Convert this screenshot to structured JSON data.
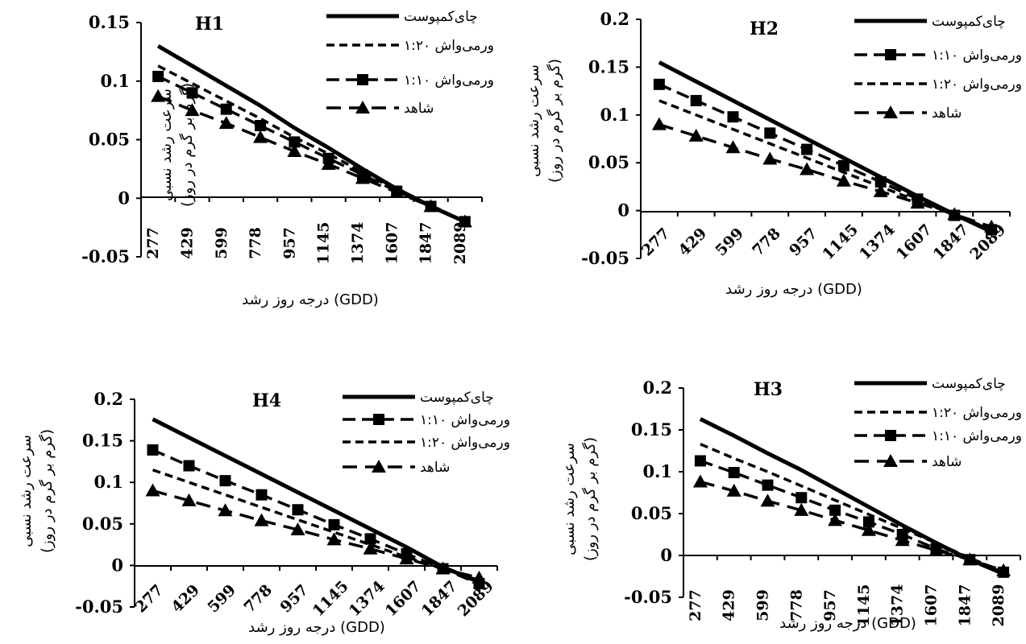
{
  "chart_data": [
    {
      "type": "line",
      "title": "H1",
      "xlabel": "درجه روز رشد (GDD)",
      "ylabel": "سرعت رشد نسبی",
      "ylabel_unit": "(گرم بر گرم در روز)",
      "categories": [
        "277",
        "429",
        "599",
        "778",
        "957",
        "1145",
        "1374",
        "1607",
        "1847",
        "2089"
      ],
      "ylim": [
        -0.05,
        0.15
      ],
      "yticks": [
        "0.15",
        "0.1",
        "0.05",
        "0",
        "-0.05"
      ],
      "tick_values": [
        0.15,
        0.1,
        0.05,
        0,
        -0.05
      ],
      "x_rotated": false,
      "legend_position": "top-right",
      "series": [
        {
          "name": "چای‌کمپوست",
          "style": "solid",
          "marker": "none",
          "values": [
            0.13,
            0.113,
            0.096,
            0.079,
            0.06,
            0.043,
            0.025,
            0.008,
            -0.007,
            -0.02
          ]
        },
        {
          "name": "ورمی‌واش ۱:۲۰",
          "style": "dashed",
          "marker": "none",
          "values": [
            0.113,
            0.098,
            0.083,
            0.068,
            0.052,
            0.038,
            0.022,
            0.007,
            -0.006,
            -0.02
          ]
        },
        {
          "name": "ورمی‌واش ۱:۱۰",
          "style": "dashdot",
          "marker": "square",
          "values": [
            0.104,
            0.09,
            0.076,
            0.062,
            0.048,
            0.034,
            0.02,
            0.006,
            -0.007,
            -0.02
          ]
        },
        {
          "name": "شاهد",
          "style": "longdash",
          "marker": "triangle",
          "values": [
            0.087,
            0.075,
            0.064,
            0.052,
            0.04,
            0.029,
            0.017,
            0.005,
            -0.007,
            -0.02
          ]
        }
      ]
    },
    {
      "type": "line",
      "title": "H2",
      "xlabel": "درجه روز رشد (GDD)",
      "ylabel": "سرعت رشد نسبی",
      "ylabel_unit": "(گرم بر گرم در روز)",
      "categories": [
        "277",
        "429",
        "599",
        "778",
        "957",
        "1145",
        "1374",
        "1607",
        "1847",
        "2089"
      ],
      "ylim": [
        -0.05,
        0.2
      ],
      "yticks": [
        "0.2",
        "0.15",
        "0.1",
        "0.05",
        "0",
        "-0.05"
      ],
      "tick_values": [
        0.2,
        0.15,
        0.1,
        0.05,
        0,
        -0.05
      ],
      "x_rotated": true,
      "legend_position": "top-right",
      "series": [
        {
          "name": "چای‌کمپوست",
          "style": "solid",
          "marker": "none",
          "values": [
            0.155,
            0.135,
            0.115,
            0.095,
            0.075,
            0.055,
            0.035,
            0.015,
            -0.004,
            -0.022
          ]
        },
        {
          "name": "ورمی‌واش ۱:۱۰",
          "style": "dashdot",
          "marker": "square",
          "values": [
            0.132,
            0.115,
            0.098,
            0.081,
            0.064,
            0.047,
            0.03,
            0.012,
            -0.005,
            -0.02
          ]
        },
        {
          "name": "ورمی‌واش ۱:۲۰",
          "style": "dashed",
          "marker": "none",
          "values": [
            0.115,
            0.1,
            0.085,
            0.07,
            0.055,
            0.04,
            0.025,
            0.01,
            -0.004,
            -0.02
          ]
        },
        {
          "name": "شاهد",
          "style": "longdash",
          "marker": "triangle",
          "values": [
            0.09,
            0.078,
            0.066,
            0.054,
            0.043,
            0.031,
            0.02,
            0.008,
            -0.004,
            -0.017
          ]
        }
      ]
    },
    {
      "type": "line",
      "title": "H4",
      "xlabel": "درجه روز رشد (GDD)",
      "ylabel": "سرعت رشد نسبی",
      "ylabel_unit": "(گرم بر گرم در روز)",
      "categories": [
        "277",
        "429",
        "599",
        "778",
        "957",
        "1145",
        "1374",
        "1607",
        "1847",
        "2089"
      ],
      "ylim": [
        -0.05,
        0.2
      ],
      "yticks": [
        "0.2",
        "0.15",
        "0.1",
        "0.05",
        "0",
        "-0.05"
      ],
      "tick_values": [
        0.2,
        0.15,
        0.1,
        0.05,
        0,
        -0.05
      ],
      "x_rotated": true,
      "legend_position": "top-right",
      "series": [
        {
          "name": "چای‌کمپوست",
          "style": "solid",
          "marker": "none",
          "values": [
            0.176,
            0.154,
            0.132,
            0.11,
            0.088,
            0.066,
            0.044,
            0.022,
            -0.002,
            -0.02
          ]
        },
        {
          "name": "ورمی‌واش ۱:۱۰",
          "style": "dashdot",
          "marker": "square",
          "values": [
            0.139,
            0.12,
            0.102,
            0.085,
            0.067,
            0.049,
            0.032,
            0.014,
            -0.004,
            -0.022
          ]
        },
        {
          "name": "ورمی‌واش ۱:۲۰",
          "style": "dashed",
          "marker": "none",
          "values": [
            0.115,
            0.1,
            0.085,
            0.07,
            0.055,
            0.04,
            0.025,
            0.01,
            -0.004,
            -0.018
          ]
        },
        {
          "name": "شاهد",
          "style": "longdash",
          "marker": "triangle",
          "values": [
            0.09,
            0.078,
            0.066,
            0.054,
            0.043,
            0.031,
            0.02,
            0.008,
            -0.004,
            -0.015
          ]
        }
      ]
    },
    {
      "type": "line",
      "title": "H3",
      "xlabel": "درجه روز رشد (GDD)",
      "ylabel": "سرعت رشد نسبی",
      "ylabel_unit": "(گرم بر گرم در روز)",
      "categories": [
        "277",
        "429",
        "599",
        "778",
        "957",
        "1145",
        "1374",
        "1607",
        "1847",
        "2089"
      ],
      "ylim": [
        -0.05,
        0.2
      ],
      "yticks": [
        "0.2",
        "0.15",
        "0.1",
        "0.05",
        "0",
        "-0.05"
      ],
      "tick_values": [
        0.2,
        0.15,
        0.1,
        0.05,
        0,
        -0.05
      ],
      "x_rotated": false,
      "legend_position": "top-right",
      "series": [
        {
          "name": "چای‌کمپوست",
          "style": "solid",
          "marker": "none",
          "values": [
            0.163,
            0.143,
            0.122,
            0.102,
            0.08,
            0.058,
            0.036,
            0.015,
            -0.005,
            -0.022
          ]
        },
        {
          "name": "ورمی‌واش ۱:۲۰",
          "style": "dashed",
          "marker": "none",
          "values": [
            0.133,
            0.116,
            0.1,
            0.083,
            0.066,
            0.049,
            0.032,
            0.015,
            -0.003,
            -0.02
          ]
        },
        {
          "name": "ورمی‌واش ۱:۱۰",
          "style": "dashdot",
          "marker": "square",
          "values": [
            0.113,
            0.099,
            0.084,
            0.069,
            0.054,
            0.04,
            0.025,
            0.008,
            -0.005,
            -0.02
          ]
        },
        {
          "name": "شاهد",
          "style": "longdash",
          "marker": "triangle",
          "values": [
            0.088,
            0.077,
            0.065,
            0.054,
            0.042,
            0.03,
            0.018,
            0.006,
            -0.005,
            -0.018
          ]
        }
      ]
    }
  ]
}
